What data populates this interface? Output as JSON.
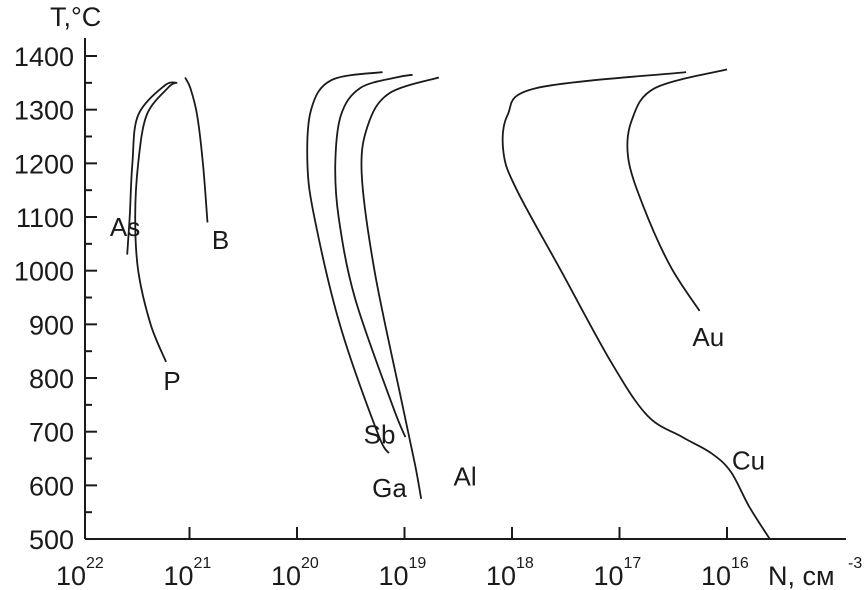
{
  "chart_data": {
    "type": "line",
    "ylabel": "T,°C",
    "xlabel": "N, см",
    "xlabel_exponent": "-3",
    "x_scale": "log",
    "x_reversed": true,
    "xlim": [
      1e+22,
      1000000000000000.0
    ],
    "ylim": [
      480,
      1450
    ],
    "y_ticks": [
      {
        "value": 1400,
        "label": "1400"
      },
      {
        "value": 1300,
        "label": "1300"
      },
      {
        "value": 1200,
        "label": "1200"
      },
      {
        "value": 1100,
        "label": "1100"
      },
      {
        "value": 1000,
        "label": "1000"
      },
      {
        "value": 900,
        "label": "900"
      },
      {
        "value": 800,
        "label": "800"
      },
      {
        "value": 700,
        "label": "700"
      },
      {
        "value": 600,
        "label": "600"
      },
      {
        "value": 500,
        "label": "500"
      }
    ],
    "x_ticks": [
      {
        "value": 1e+22,
        "base": "10",
        "exp": "22"
      },
      {
        "value": 1e+21,
        "base": "10",
        "exp": "21"
      },
      {
        "value": 1e+20,
        "base": "10",
        "exp": "20"
      },
      {
        "value": 1e+19,
        "base": "10",
        "exp": "19"
      },
      {
        "value": 1e+18,
        "base": "10",
        "exp": "18"
      },
      {
        "value": 1e+17,
        "base": "10",
        "exp": "17"
      },
      {
        "value": 1e+16,
        "base": "10",
        "exp": "16"
      }
    ],
    "grid": false,
    "series": [
      {
        "name": "As",
        "points": [
          [
            3.8e+21,
            1030
          ],
          [
            3.6e+21,
            1100
          ],
          [
            3.4e+21,
            1200
          ],
          [
            3e+21,
            1290
          ],
          [
            1.7e+21,
            1345
          ],
          [
            1.3e+21,
            1350
          ]
        ]
      },
      {
        "name": "P",
        "points": [
          [
            1.65e+21,
            830
          ],
          [
            2.3e+21,
            900
          ],
          [
            3e+21,
            1000
          ],
          [
            3.2e+21,
            1100
          ],
          [
            3e+21,
            1200
          ],
          [
            2.5e+21,
            1290
          ],
          [
            1.6e+21,
            1340
          ],
          [
            1.35e+21,
            1350
          ]
        ]
      },
      {
        "name": "B",
        "points": [
          [
            6.8e+20,
            1090
          ],
          [
            7.5e+20,
            1200
          ],
          [
            8.5e+20,
            1290
          ],
          [
            9.8e+20,
            1340
          ],
          [
            1.1e+21,
            1360
          ]
        ]
      },
      {
        "name": "Sb",
        "points": [
          [
            1.4e+19,
            660
          ],
          [
            1.8e+19,
            700
          ],
          [
            4e+19,
            900
          ],
          [
            6.9e+19,
            1100
          ],
          [
            8e+19,
            1200
          ],
          [
            7.4e+19,
            1300
          ],
          [
            4.8e+19,
            1355
          ],
          [
            1.6e+19,
            1370
          ]
        ]
      },
      {
        "name": "Ga",
        "points": [
          [
            9.8e+18,
            690
          ],
          [
            1.3e+19,
            750
          ],
          [
            2.9e+19,
            950
          ],
          [
            4.1e+19,
            1100
          ],
          [
            4.4e+19,
            1200
          ],
          [
            3.9e+19,
            1290
          ],
          [
            2.6e+19,
            1340
          ],
          [
            1.2e+19,
            1360
          ],
          [
            8.4e+18,
            1365
          ]
        ]
      },
      {
        "name": "Al",
        "points": [
          [
            7e+18,
            575
          ],
          [
            8e+18,
            640
          ],
          [
            1.1e+19,
            770
          ],
          [
            1.9e+19,
            1000
          ],
          [
            2.5e+19,
            1180
          ],
          [
            2.2e+19,
            1270
          ],
          [
            1.4e+19,
            1330
          ],
          [
            4.8e+18,
            1360
          ]
        ]
      },
      {
        "name": "Cu",
        "points": [
          [
            4000000000000000.0,
            500
          ],
          [
            6200000000000000.0,
            560
          ],
          [
            9200000000000000.0,
            625
          ],
          [
            1.4e+16,
            660
          ],
          [
            2.6e+16,
            690
          ],
          [
            5.5e+16,
            730
          ],
          [
            1.2e+17,
            830
          ],
          [
            3.5e+17,
            1000
          ],
          [
            9e+17,
            1150
          ],
          [
            1.2e+18,
            1220
          ],
          [
            1.1e+18,
            1290
          ],
          [
            6e+17,
            1340
          ],
          [
            2.4e+16,
            1370
          ]
        ]
      },
      {
        "name": "Au",
        "points": [
          [
            1.8e+16,
            925
          ],
          [
            3.4e+16,
            1010
          ],
          [
            6e+16,
            1120
          ],
          [
            8.3e+16,
            1210
          ],
          [
            7.7e+16,
            1280
          ],
          [
            4.7e+16,
            1340
          ],
          [
            1e+16,
            1375
          ]
        ]
      }
    ],
    "labels": [
      {
        "text": "As",
        "x": 5.5e+21,
        "y": 1065
      },
      {
        "text": "P",
        "x": 1.75e+21,
        "y": 778
      },
      {
        "text": "B",
        "x": 6.2e+20,
        "y": 1040
      },
      {
        "text": "Sb",
        "x": 2.4e+19,
        "y": 678
      },
      {
        "text": "Ga",
        "x": 2e+19,
        "y": 578
      },
      {
        "text": "Al",
        "x": 3.5e+18,
        "y": 600
      },
      {
        "text": "Au",
        "x": 2.1e+16,
        "y": 860
      },
      {
        "text": "Cu",
        "x": 9000000000000000.0,
        "y": 630
      }
    ]
  }
}
